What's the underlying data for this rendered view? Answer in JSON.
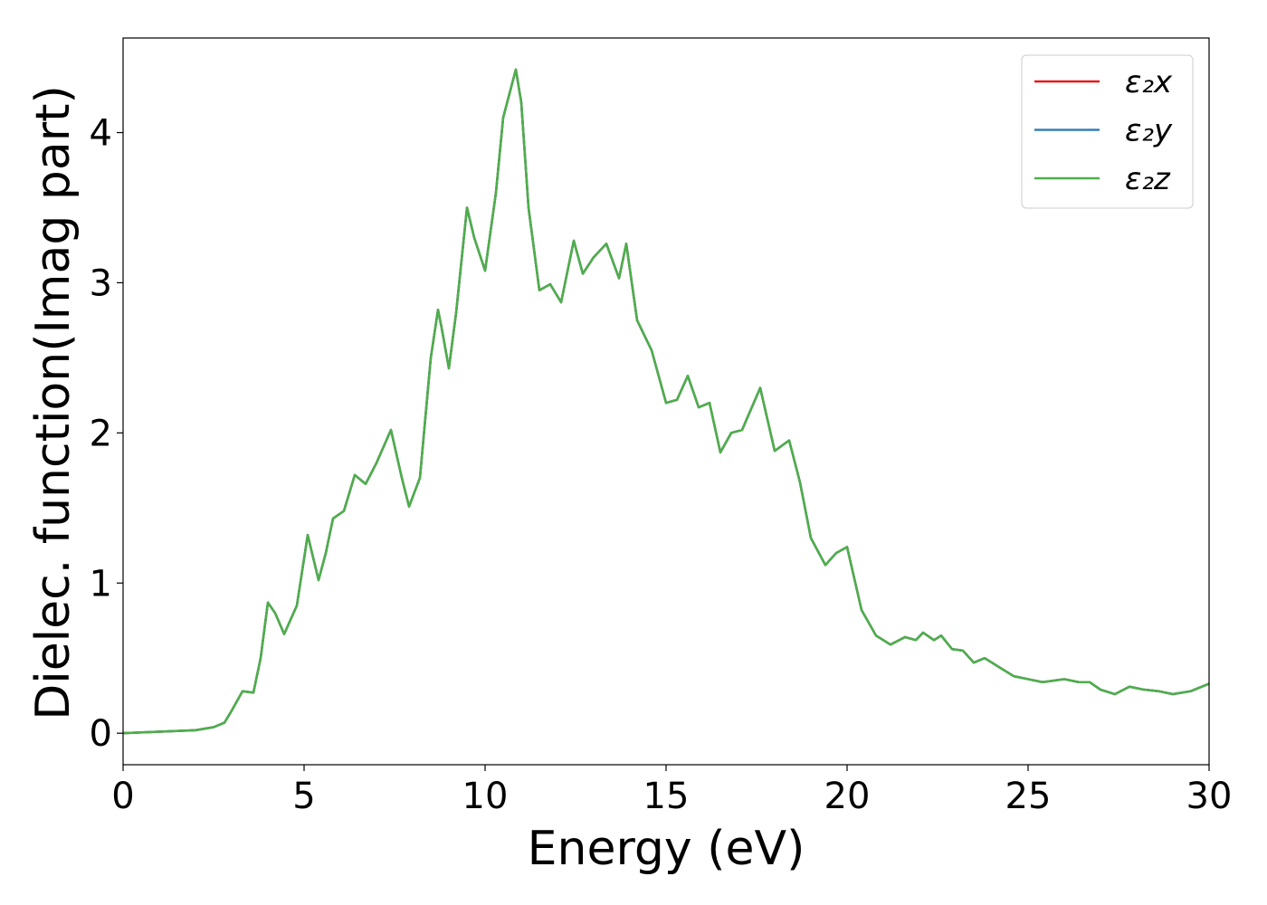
{
  "chart_data": {
    "type": "line",
    "xlabel": "Energy (eV)",
    "ylabel": "Dielec. function(Imag part)",
    "x": [
      0,
      1,
      2,
      2.5,
      2.8,
      3.0,
      3.3,
      3.6,
      3.8,
      4.0,
      4.2,
      4.45,
      4.8,
      5.1,
      5.4,
      5.6,
      5.8,
      6.1,
      6.4,
      6.7,
      7.0,
      7.4,
      7.7,
      7.9,
      8.2,
      8.5,
      8.7,
      8.8,
      9.0,
      9.2,
      9.5,
      9.7,
      10.0,
      10.3,
      10.5,
      10.85,
      11.0,
      11.2,
      11.5,
      11.8,
      12.1,
      12.45,
      12.7,
      13.0,
      13.35,
      13.7,
      13.9,
      14.2,
      14.6,
      15.0,
      15.3,
      15.6,
      15.9,
      16.2,
      16.5,
      16.8,
      17.1,
      17.6,
      18.0,
      18.4,
      18.7,
      19.0,
      19.4,
      19.7,
      20.0,
      20.4,
      20.8,
      21.2,
      21.6,
      21.9,
      22.1,
      22.4,
      22.6,
      22.9,
      23.2,
      23.5,
      23.8,
      24.2,
      24.6,
      25.0,
      25.4,
      26.0,
      26.4,
      26.7,
      27.0,
      27.4,
      27.8,
      28.2,
      28.6,
      29.0,
      29.5,
      30.0
    ],
    "series": [
      {
        "name": "ε₂x",
        "color": "#e41a1c",
        "values": [
          0,
          0.01,
          0.02,
          0.04,
          0.07,
          0.15,
          0.28,
          0.27,
          0.5,
          0.87,
          0.8,
          0.66,
          0.85,
          1.32,
          1.02,
          1.2,
          1.43,
          1.48,
          1.72,
          1.66,
          1.8,
          2.02,
          1.7,
          1.51,
          1.7,
          2.5,
          2.82,
          2.7,
          2.43,
          2.8,
          3.5,
          3.3,
          3.08,
          3.6,
          4.1,
          4.42,
          4.2,
          3.5,
          2.95,
          2.99,
          2.87,
          3.28,
          3.06,
          3.17,
          3.26,
          3.03,
          3.26,
          2.75,
          2.55,
          2.2,
          2.22,
          2.38,
          2.17,
          2.2,
          1.87,
          2.0,
          2.02,
          2.3,
          1.88,
          1.95,
          1.67,
          1.3,
          1.12,
          1.2,
          1.24,
          0.82,
          0.65,
          0.59,
          0.64,
          0.62,
          0.67,
          0.62,
          0.65,
          0.56,
          0.55,
          0.47,
          0.5,
          0.44,
          0.38,
          0.36,
          0.34,
          0.36,
          0.34,
          0.34,
          0.29,
          0.26,
          0.31,
          0.29,
          0.28,
          0.26,
          0.28,
          0.33
        ]
      },
      {
        "name": "ε₂y",
        "color": "#377eb8",
        "values": [
          0,
          0.01,
          0.02,
          0.04,
          0.07,
          0.15,
          0.28,
          0.27,
          0.5,
          0.87,
          0.8,
          0.66,
          0.85,
          1.32,
          1.02,
          1.2,
          1.43,
          1.48,
          1.72,
          1.66,
          1.8,
          2.02,
          1.7,
          1.51,
          1.7,
          2.5,
          2.82,
          2.7,
          2.43,
          2.8,
          3.5,
          3.3,
          3.08,
          3.6,
          4.1,
          4.42,
          4.2,
          3.5,
          2.95,
          2.99,
          2.87,
          3.28,
          3.06,
          3.17,
          3.26,
          3.03,
          3.26,
          2.75,
          2.55,
          2.2,
          2.22,
          2.38,
          2.17,
          2.2,
          1.87,
          2.0,
          2.02,
          2.3,
          1.88,
          1.95,
          1.67,
          1.3,
          1.12,
          1.2,
          1.24,
          0.82,
          0.65,
          0.59,
          0.64,
          0.62,
          0.67,
          0.62,
          0.65,
          0.56,
          0.55,
          0.47,
          0.5,
          0.44,
          0.38,
          0.36,
          0.34,
          0.36,
          0.34,
          0.34,
          0.29,
          0.26,
          0.31,
          0.29,
          0.28,
          0.26,
          0.28,
          0.33
        ]
      },
      {
        "name": "ε₂z",
        "color": "#4daf4a",
        "values": [
          0,
          0.01,
          0.02,
          0.04,
          0.07,
          0.15,
          0.28,
          0.27,
          0.5,
          0.87,
          0.8,
          0.66,
          0.85,
          1.32,
          1.02,
          1.2,
          1.43,
          1.48,
          1.72,
          1.66,
          1.8,
          2.02,
          1.7,
          1.51,
          1.7,
          2.5,
          2.82,
          2.7,
          2.43,
          2.8,
          3.5,
          3.3,
          3.08,
          3.6,
          4.1,
          4.42,
          4.2,
          3.5,
          2.95,
          2.99,
          2.87,
          3.28,
          3.06,
          3.17,
          3.26,
          3.03,
          3.26,
          2.75,
          2.55,
          2.2,
          2.22,
          2.38,
          2.17,
          2.2,
          1.87,
          2.0,
          2.02,
          2.3,
          1.88,
          1.95,
          1.67,
          1.3,
          1.12,
          1.2,
          1.24,
          0.82,
          0.65,
          0.59,
          0.64,
          0.62,
          0.67,
          0.62,
          0.65,
          0.56,
          0.55,
          0.47,
          0.5,
          0.44,
          0.38,
          0.36,
          0.34,
          0.36,
          0.34,
          0.34,
          0.29,
          0.26,
          0.31,
          0.29,
          0.28,
          0.26,
          0.28,
          0.33
        ]
      }
    ],
    "xlim": [
      0,
      30
    ],
    "xticks": [
      0,
      5,
      10,
      15,
      20,
      25,
      30
    ],
    "ylim": [
      -0.21,
      4.63
    ],
    "yticks": [
      0,
      1,
      2,
      3,
      4
    ],
    "grid": false,
    "legend": "upper right"
  }
}
